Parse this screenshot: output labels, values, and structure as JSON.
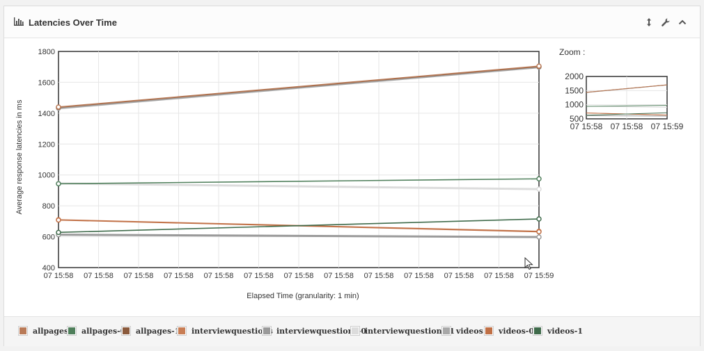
{
  "panel": {
    "title": "Latencies Over Time",
    "header_icon": "bar-chart-icon",
    "tools": [
      {
        "name": "expand-vertical-icon",
        "glyph": "↕"
      },
      {
        "name": "wrench-icon",
        "glyph": "wrench"
      },
      {
        "name": "collapse-chevron-icon",
        "glyph": "chevron-up"
      }
    ]
  },
  "zoom": {
    "label": "Zoom :"
  },
  "chart_data": [
    {
      "type": "line",
      "ylabel": "Average response latencies in ms",
      "xlabel": "Elapsed Time (granularity: 1 min)",
      "ylim": [
        400,
        1800
      ],
      "yticks": [
        400,
        600,
        800,
        1000,
        1200,
        1400,
        1600,
        1800
      ],
      "xtick_labels": [
        "07 15:58",
        "07 15:58",
        "07 15:58",
        "07 15:58",
        "07 15:58",
        "07 15:58",
        "07 15:58",
        "07 15:58",
        "07 15:58",
        "07 15:58",
        "07 15:58",
        "07 15:58",
        "07 15:59"
      ],
      "x": [
        0,
        1
      ],
      "grid": true,
      "legend_placement": "bottom",
      "series": [
        {
          "name": "allpages",
          "color": "#b97a57",
          "values": [
            1440,
            1705
          ]
        },
        {
          "name": "allpages-0",
          "color": "#4f7f5b",
          "values": [
            943,
            975
          ]
        },
        {
          "name": "allpages-1",
          "color": "#8b5a3c",
          "values": [
            1438,
            1702
          ]
        },
        {
          "name": "interviewquestions",
          "color": "#c87d54",
          "values": [
            710,
            635
          ]
        },
        {
          "name": "interviewquestions-0",
          "color": "#9a9a9a",
          "values": [
            613,
            598
          ]
        },
        {
          "name": "interviewquestions-1",
          "color": "#dcdcdc",
          "values": [
            945,
            908
          ]
        },
        {
          "name": "videos",
          "color": "#a8a8a8",
          "values": [
            1432,
            1698
          ]
        },
        {
          "name": "videos-0",
          "color": "#c06f45",
          "values": [
            708,
            632
          ]
        },
        {
          "name": "videos-1",
          "color": "#3f6b4b",
          "values": [
            628,
            715
          ]
        }
      ]
    },
    {
      "type": "line",
      "ylim": [
        500,
        2000
      ],
      "yticks": [
        500,
        1000,
        1500,
        2000
      ],
      "xtick_labels": [
        "07 15:58",
        "07 15:58",
        "07 15:59"
      ],
      "x": [
        0,
        1
      ],
      "grid": true,
      "series_ref": "same as main chart"
    }
  ]
}
